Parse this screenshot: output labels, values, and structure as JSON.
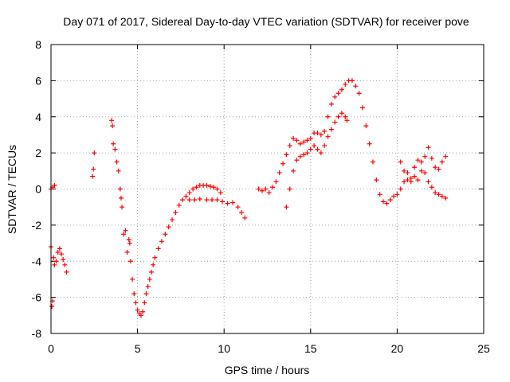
{
  "chart_data": {
    "type": "scatter",
    "title": "Day 071 of 2017, Sidereal Day-to-day VTEC variation (SDTVAR) for receiver pove",
    "xlabel": "GPS time / hours",
    "ylabel": "SDTVAR / TECUs",
    "xlim": [
      0,
      25
    ],
    "ylim": [
      -8,
      8
    ],
    "xticks": [
      0,
      5,
      10,
      15,
      20,
      25
    ],
    "yticks": [
      -8,
      -6,
      -4,
      -2,
      0,
      2,
      4,
      6,
      8
    ],
    "grid": true,
    "legend": "none",
    "marker": "+",
    "color": "#ff0000",
    "series": [
      {
        "values": [
          [
            0.0,
            -3.2
          ],
          [
            0.05,
            -6.5
          ],
          [
            0.1,
            -6.2
          ],
          [
            0.15,
            -3.8
          ],
          [
            0.2,
            -4.2
          ],
          [
            0.3,
            -4.0
          ],
          [
            0.4,
            -3.5
          ],
          [
            0.5,
            -3.3
          ],
          [
            0.6,
            -3.6
          ],
          [
            0.7,
            -3.9
          ],
          [
            0.8,
            -4.2
          ],
          [
            0.9,
            -4.6
          ],
          [
            0.0,
            0.0
          ],
          [
            0.1,
            0.1
          ],
          [
            0.2,
            0.2
          ],
          [
            2.4,
            0.7
          ],
          [
            2.45,
            1.1
          ],
          [
            2.5,
            2.0
          ],
          [
            3.5,
            3.8
          ],
          [
            3.55,
            3.5
          ],
          [
            3.6,
            2.5
          ],
          [
            3.7,
            2.2
          ],
          [
            3.8,
            1.5
          ],
          [
            3.9,
            1.0
          ],
          [
            4.0,
            0.0
          ],
          [
            4.05,
            -0.5
          ],
          [
            4.1,
            -1.0
          ],
          [
            4.2,
            -2.5
          ],
          [
            4.3,
            -2.3
          ],
          [
            4.4,
            -3.5
          ],
          [
            4.5,
            -2.8
          ],
          [
            4.55,
            -3.0
          ],
          [
            4.6,
            -4.0
          ],
          [
            4.7,
            -5.0
          ],
          [
            4.8,
            -5.8
          ],
          [
            4.9,
            -6.3
          ],
          [
            5.0,
            -6.7
          ],
          [
            5.1,
            -6.9
          ],
          [
            5.2,
            -7.0
          ],
          [
            5.3,
            -6.8
          ],
          [
            5.4,
            -6.3
          ],
          [
            5.5,
            -5.8
          ],
          [
            5.6,
            -5.4
          ],
          [
            5.7,
            -5.0
          ],
          [
            5.8,
            -4.6
          ],
          [
            5.9,
            -4.2
          ],
          [
            6.0,
            -3.8
          ],
          [
            6.2,
            -3.3
          ],
          [
            6.4,
            -2.9
          ],
          [
            6.6,
            -2.5
          ],
          [
            6.8,
            -2.1
          ],
          [
            7.0,
            -1.7
          ],
          [
            7.2,
            -1.3
          ],
          [
            7.4,
            -0.9
          ],
          [
            7.6,
            -0.6
          ],
          [
            7.8,
            -0.4
          ],
          [
            8.0,
            -0.2
          ],
          [
            8.2,
            0.0
          ],
          [
            8.4,
            0.1
          ],
          [
            8.6,
            0.2
          ],
          [
            8.8,
            0.2
          ],
          [
            9.0,
            0.2
          ],
          [
            9.2,
            0.15
          ],
          [
            9.4,
            0.1
          ],
          [
            9.6,
            0.0
          ],
          [
            9.8,
            -0.2
          ],
          [
            8.0,
            -0.6
          ],
          [
            8.3,
            -0.6
          ],
          [
            8.6,
            -0.55
          ],
          [
            9.0,
            -0.6
          ],
          [
            9.3,
            -0.6
          ],
          [
            9.6,
            -0.6
          ],
          [
            9.9,
            -0.7
          ],
          [
            10.2,
            -0.8
          ],
          [
            10.5,
            -0.75
          ],
          [
            10.8,
            -1.0
          ],
          [
            11.0,
            -1.3
          ],
          [
            11.2,
            -1.6
          ],
          [
            12.0,
            0.0
          ],
          [
            12.2,
            -0.1
          ],
          [
            12.4,
            0.0
          ],
          [
            12.6,
            -0.2
          ],
          [
            12.8,
            0.1
          ],
          [
            13.0,
            0.4
          ],
          [
            13.2,
            0.9
          ],
          [
            13.4,
            1.4
          ],
          [
            13.6,
            1.9
          ],
          [
            13.8,
            2.4
          ],
          [
            14.0,
            2.8
          ],
          [
            14.2,
            2.7
          ],
          [
            14.4,
            2.5
          ],
          [
            14.6,
            2.6
          ],
          [
            14.8,
            2.7
          ],
          [
            15.0,
            2.8
          ],
          [
            15.2,
            3.1
          ],
          [
            15.4,
            3.1
          ],
          [
            15.6,
            3.0
          ],
          [
            15.8,
            3.2
          ],
          [
            16.0,
            4.0
          ],
          [
            16.2,
            4.7
          ],
          [
            16.4,
            5.1
          ],
          [
            16.6,
            5.3
          ],
          [
            16.8,
            5.5
          ],
          [
            17.0,
            5.8
          ],
          [
            17.2,
            6.0
          ],
          [
            17.4,
            6.0
          ],
          [
            17.6,
            5.7
          ],
          [
            17.8,
            5.3
          ],
          [
            18.0,
            4.5
          ],
          [
            18.2,
            3.5
          ],
          [
            18.4,
            2.5
          ],
          [
            18.6,
            1.5
          ],
          [
            18.8,
            0.5
          ],
          [
            19.0,
            -0.3
          ],
          [
            19.2,
            -0.7
          ],
          [
            19.4,
            -0.8
          ],
          [
            13.6,
            -1.0
          ],
          [
            13.8,
            0.0
          ],
          [
            14.0,
            1.0
          ],
          [
            14.2,
            1.6
          ],
          [
            14.4,
            1.8
          ],
          [
            14.6,
            1.9
          ],
          [
            14.8,
            2.0
          ],
          [
            15.0,
            2.2
          ],
          [
            15.2,
            2.4
          ],
          [
            15.4,
            2.2
          ],
          [
            15.6,
            2.0
          ],
          [
            15.8,
            2.4
          ],
          [
            16.0,
            2.9
          ],
          [
            16.2,
            3.3
          ],
          [
            16.4,
            3.7
          ],
          [
            16.6,
            4.0
          ],
          [
            16.8,
            4.2
          ],
          [
            17.0,
            4.0
          ],
          [
            17.1,
            3.8
          ],
          [
            19.6,
            -0.6
          ],
          [
            19.8,
            -0.4
          ],
          [
            20.0,
            -0.3
          ],
          [
            20.2,
            0.0
          ],
          [
            20.4,
            0.4
          ],
          [
            20.6,
            0.9
          ],
          [
            20.8,
            0.6
          ],
          [
            21.0,
            0.7
          ],
          [
            21.2,
            0.5
          ],
          [
            21.4,
            1.0
          ],
          [
            21.6,
            1.8
          ],
          [
            21.8,
            2.3
          ],
          [
            22.0,
            1.7
          ],
          [
            22.2,
            1.2
          ],
          [
            22.4,
            1.1
          ],
          [
            22.6,
            1.5
          ],
          [
            22.8,
            1.8
          ],
          [
            20.2,
            1.5
          ],
          [
            20.4,
            1.0
          ],
          [
            20.6,
            0.5
          ],
          [
            20.8,
            0.4
          ],
          [
            21.0,
            1.2
          ],
          [
            21.2,
            1.6
          ],
          [
            21.4,
            1.5
          ],
          [
            21.6,
            0.9
          ],
          [
            21.8,
            0.4
          ],
          [
            22.0,
            0.1
          ],
          [
            22.2,
            -0.2
          ],
          [
            22.4,
            -0.3
          ],
          [
            22.6,
            -0.4
          ],
          [
            22.8,
            -0.5
          ]
        ]
      }
    ]
  }
}
